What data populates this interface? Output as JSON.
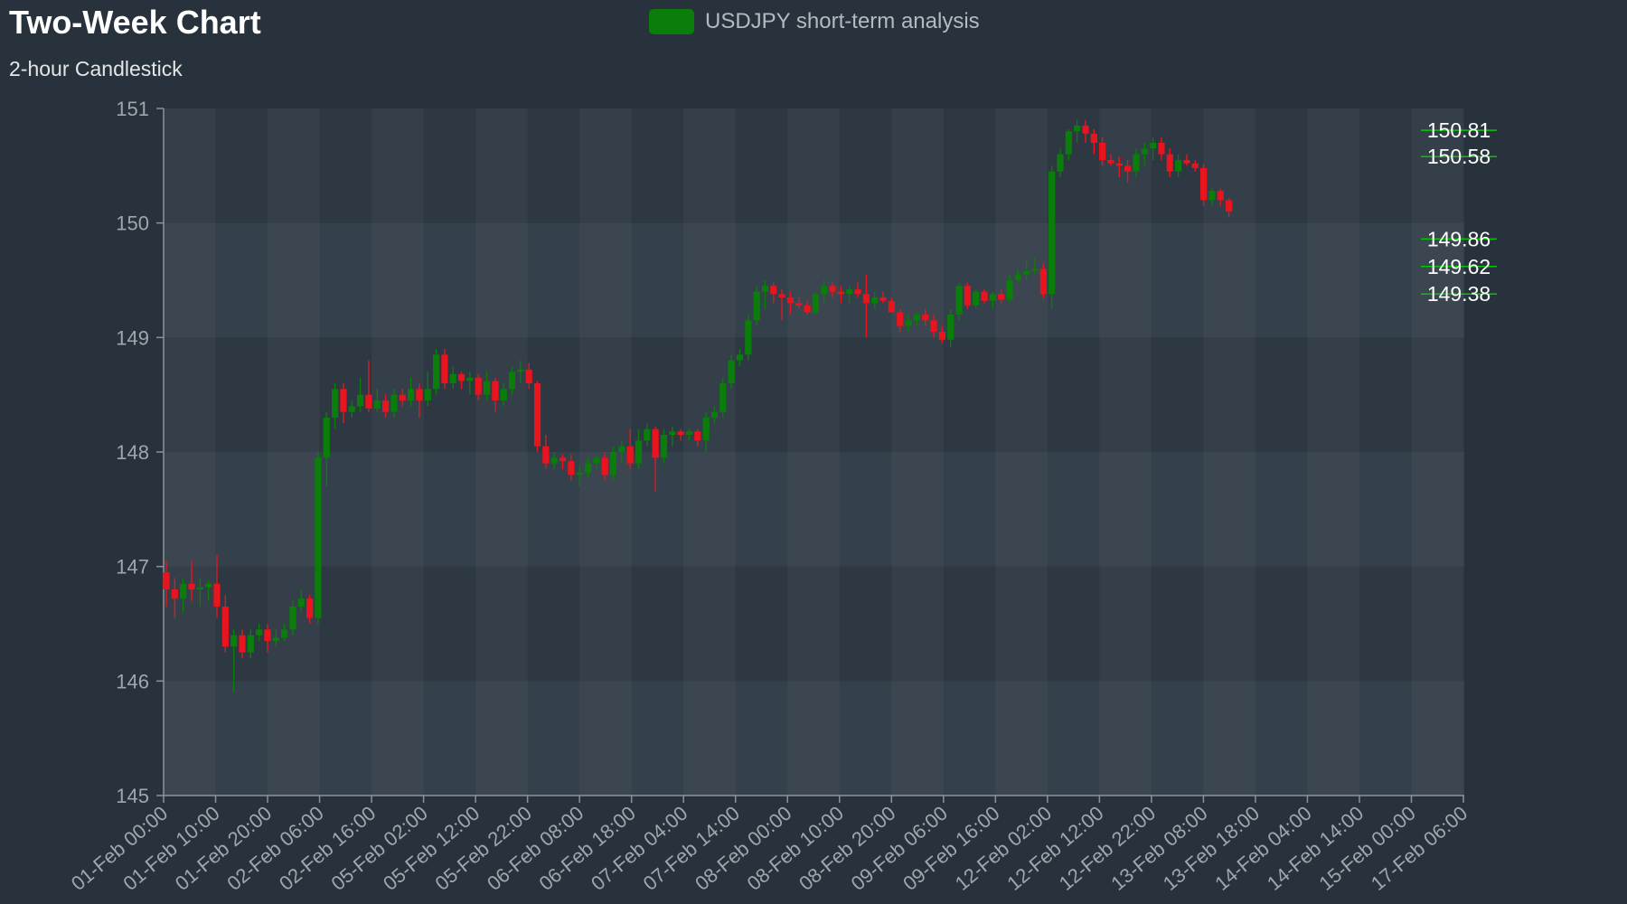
{
  "chart_data": {
    "type": "candlestick",
    "title": "Two-Week Chart",
    "subtitle": "2-hour Candlestick",
    "legend": {
      "label": "USDJPY short-term analysis",
      "color": "#0a7d0a",
      "placement": "top-center"
    },
    "colors": {
      "up": "#0a7d0a",
      "down": "#e8141e",
      "background": "#28323c",
      "axis": "#8c939a",
      "tick_text": "#a0a6ac",
      "level_text": "#ffffff",
      "level_line": "#00c800"
    },
    "ylim": [
      145,
      151
    ],
    "y_ticks": [
      "151",
      "150",
      "149",
      "148",
      "147",
      "146",
      "145"
    ],
    "x_ticks": [
      "01-Feb 00:00",
      "01-Feb 10:00",
      "01-Feb 20:00",
      "02-Feb 06:00",
      "02-Feb 16:00",
      "05-Feb 02:00",
      "05-Feb 12:00",
      "05-Feb 22:00",
      "06-Feb 08:00",
      "06-Feb 18:00",
      "07-Feb 04:00",
      "07-Feb 14:00",
      "08-Feb 00:00",
      "08-Feb 10:00",
      "08-Feb 20:00",
      "09-Feb 06:00",
      "09-Feb 16:00",
      "12-Feb 02:00",
      "12-Feb 12:00",
      "12-Feb 22:00",
      "13-Feb 08:00",
      "13-Feb 18:00",
      "14-Feb 04:00",
      "14-Feb 14:00",
      "15-Feb 00:00",
      "17-Feb 06:00"
    ],
    "levels": [
      {
        "label": "150.81",
        "value": 150.81
      },
      {
        "label": "150.58",
        "value": 150.58
      },
      {
        "label": "149.86",
        "value": 149.86
      },
      {
        "label": "149.62",
        "value": 149.62
      },
      {
        "label": "149.38",
        "value": 149.38
      }
    ],
    "candles": [
      [
        146.95,
        147.05,
        146.65,
        146.8
      ],
      [
        146.8,
        146.9,
        146.55,
        146.72
      ],
      [
        146.72,
        146.9,
        146.6,
        146.85
      ],
      [
        146.85,
        147.05,
        146.7,
        146.8
      ],
      [
        146.8,
        146.9,
        146.65,
        146.82
      ],
      [
        146.82,
        146.88,
        146.7,
        146.85
      ],
      [
        146.85,
        147.1,
        146.55,
        146.65
      ],
      [
        146.65,
        146.75,
        146.25,
        146.3
      ],
      [
        146.3,
        146.45,
        145.9,
        146.4
      ],
      [
        146.4,
        146.45,
        146.2,
        146.25
      ],
      [
        146.25,
        146.45,
        146.2,
        146.4
      ],
      [
        146.4,
        146.5,
        146.35,
        146.45
      ],
      [
        146.45,
        146.5,
        146.25,
        146.35
      ],
      [
        146.35,
        146.45,
        146.3,
        146.38
      ],
      [
        146.38,
        146.5,
        146.35,
        146.45
      ],
      [
        146.45,
        146.7,
        146.4,
        146.65
      ],
      [
        146.65,
        146.8,
        146.6,
        146.72
      ],
      [
        146.72,
        146.75,
        146.5,
        146.55
      ],
      [
        146.55,
        148.0,
        146.5,
        147.95
      ],
      [
        147.95,
        148.35,
        147.7,
        148.3
      ],
      [
        148.3,
        148.6,
        148.2,
        148.55
      ],
      [
        148.55,
        148.6,
        148.25,
        148.35
      ],
      [
        148.35,
        148.45,
        148.3,
        148.4
      ],
      [
        148.4,
        148.65,
        148.35,
        148.5
      ],
      [
        148.5,
        148.8,
        148.35,
        148.38
      ],
      [
        148.38,
        148.55,
        148.35,
        148.45
      ],
      [
        148.45,
        148.5,
        148.3,
        148.35
      ],
      [
        148.35,
        148.55,
        148.3,
        148.5
      ],
      [
        148.5,
        148.55,
        148.4,
        148.45
      ],
      [
        148.45,
        148.65,
        148.4,
        148.55
      ],
      [
        148.55,
        148.6,
        148.3,
        148.45
      ],
      [
        148.45,
        148.7,
        148.4,
        148.55
      ],
      [
        148.55,
        148.9,
        148.5,
        148.85
      ],
      [
        148.85,
        148.9,
        148.55,
        148.6
      ],
      [
        148.6,
        148.75,
        148.55,
        148.68
      ],
      [
        148.68,
        148.7,
        148.55,
        148.62
      ],
      [
        148.62,
        148.7,
        148.5,
        148.65
      ],
      [
        148.65,
        148.68,
        148.45,
        148.5
      ],
      [
        148.5,
        148.7,
        148.45,
        148.62
      ],
      [
        148.62,
        148.65,
        148.35,
        148.45
      ],
      [
        148.45,
        148.6,
        148.4,
        148.55
      ],
      [
        148.55,
        148.75,
        148.5,
        148.7
      ],
      [
        148.7,
        148.8,
        148.6,
        148.72
      ],
      [
        148.72,
        148.78,
        148.55,
        148.6
      ],
      [
        148.6,
        148.62,
        148.0,
        148.05
      ],
      [
        148.05,
        148.15,
        147.85,
        147.9
      ],
      [
        147.9,
        148.0,
        147.85,
        147.95
      ],
      [
        147.95,
        147.98,
        147.85,
        147.92
      ],
      [
        147.92,
        147.98,
        147.75,
        147.8
      ],
      [
        147.8,
        147.88,
        147.7,
        147.82
      ],
      [
        147.82,
        147.95,
        147.78,
        147.9
      ],
      [
        147.9,
        147.98,
        147.85,
        147.95
      ],
      [
        147.95,
        148.0,
        147.75,
        147.8
      ],
      [
        147.8,
        148.05,
        147.75,
        148.0
      ],
      [
        148.0,
        148.1,
        147.9,
        148.05
      ],
      [
        148.05,
        148.2,
        147.85,
        147.9
      ],
      [
        147.9,
        148.2,
        147.85,
        148.1
      ],
      [
        148.1,
        148.25,
        148.05,
        148.2
      ],
      [
        148.2,
        148.22,
        147.65,
        147.95
      ],
      [
        147.95,
        148.2,
        147.9,
        148.15
      ],
      [
        148.15,
        148.22,
        148.05,
        148.18
      ],
      [
        148.18,
        148.2,
        148.1,
        148.15
      ],
      [
        148.15,
        148.2,
        148.1,
        148.18
      ],
      [
        148.18,
        148.2,
        148.05,
        148.1
      ],
      [
        148.1,
        148.35,
        148.0,
        148.3
      ],
      [
        148.3,
        148.4,
        148.25,
        148.35
      ],
      [
        148.35,
        148.65,
        148.3,
        148.6
      ],
      [
        148.6,
        148.85,
        148.55,
        148.8
      ],
      [
        148.8,
        148.9,
        148.75,
        148.85
      ],
      [
        148.85,
        149.2,
        148.8,
        149.15
      ],
      [
        149.15,
        149.45,
        149.1,
        149.4
      ],
      [
        149.4,
        149.5,
        149.25,
        149.45
      ],
      [
        149.45,
        149.48,
        149.3,
        149.38
      ],
      [
        149.38,
        149.42,
        149.15,
        149.35
      ],
      [
        149.35,
        149.4,
        149.2,
        149.3
      ],
      [
        149.3,
        149.35,
        149.25,
        149.28
      ],
      [
        149.28,
        149.32,
        149.2,
        149.22
      ],
      [
        149.22,
        149.4,
        149.2,
        149.38
      ],
      [
        149.38,
        149.5,
        149.3,
        149.45
      ],
      [
        149.45,
        149.48,
        149.35,
        149.4
      ],
      [
        149.4,
        149.45,
        149.3,
        149.38
      ],
      [
        149.38,
        149.45,
        149.3,
        149.42
      ],
      [
        149.42,
        149.48,
        149.35,
        149.38
      ],
      [
        149.38,
        149.55,
        149.0,
        149.3
      ],
      [
        149.3,
        149.4,
        149.25,
        149.35
      ],
      [
        149.35,
        149.4,
        149.3,
        149.32
      ],
      [
        149.32,
        149.35,
        149.25,
        149.22
      ],
      [
        149.22,
        149.25,
        149.05,
        149.1
      ],
      [
        149.1,
        149.2,
        149.05,
        149.15
      ],
      [
        149.15,
        149.22,
        149.1,
        149.2
      ],
      [
        149.2,
        149.25,
        149.1,
        149.15
      ],
      [
        149.15,
        149.2,
        149.0,
        149.05
      ],
      [
        149.05,
        149.1,
        148.95,
        148.98
      ],
      [
        148.98,
        149.25,
        148.92,
        149.2
      ],
      [
        149.2,
        149.48,
        149.15,
        149.45
      ],
      [
        149.45,
        149.48,
        149.25,
        149.28
      ],
      [
        149.28,
        149.42,
        149.25,
        149.4
      ],
      [
        149.4,
        149.42,
        149.3,
        149.32
      ],
      [
        149.32,
        149.4,
        149.25,
        149.38
      ],
      [
        149.38,
        149.42,
        149.3,
        149.33
      ],
      [
        149.33,
        149.55,
        149.3,
        149.5
      ],
      [
        149.5,
        149.6,
        149.48,
        149.55
      ],
      [
        149.55,
        149.68,
        149.5,
        149.58
      ],
      [
        149.58,
        149.7,
        149.55,
        149.6
      ],
      [
        149.6,
        149.65,
        149.35,
        149.38
      ],
      [
        149.38,
        150.5,
        149.25,
        150.45
      ],
      [
        150.45,
        150.65,
        150.4,
        150.6
      ],
      [
        150.6,
        150.82,
        150.55,
        150.8
      ],
      [
        150.8,
        150.9,
        150.7,
        150.85
      ],
      [
        150.85,
        150.9,
        150.7,
        150.78
      ],
      [
        150.78,
        150.82,
        150.6,
        150.7
      ],
      [
        150.7,
        150.75,
        150.5,
        150.55
      ],
      [
        150.55,
        150.6,
        150.5,
        150.52
      ],
      [
        150.52,
        150.58,
        150.4,
        150.5
      ],
      [
        150.5,
        150.55,
        150.35,
        150.45
      ],
      [
        150.45,
        150.65,
        150.4,
        150.6
      ],
      [
        150.6,
        150.7,
        150.5,
        150.65
      ],
      [
        150.65,
        150.75,
        150.55,
        150.7
      ],
      [
        150.7,
        150.75,
        150.55,
        150.6
      ],
      [
        150.6,
        150.65,
        150.4,
        150.45
      ],
      [
        150.45,
        150.6,
        150.4,
        150.55
      ],
      [
        150.55,
        150.6,
        150.5,
        150.52
      ],
      [
        150.52,
        150.55,
        150.45,
        150.48
      ],
      [
        150.48,
        150.52,
        150.15,
        150.2
      ],
      [
        150.2,
        150.3,
        150.15,
        150.28
      ],
      [
        150.28,
        150.3,
        150.15,
        150.2
      ],
      [
        150.2,
        150.22,
        150.05,
        150.1
      ]
    ]
  }
}
